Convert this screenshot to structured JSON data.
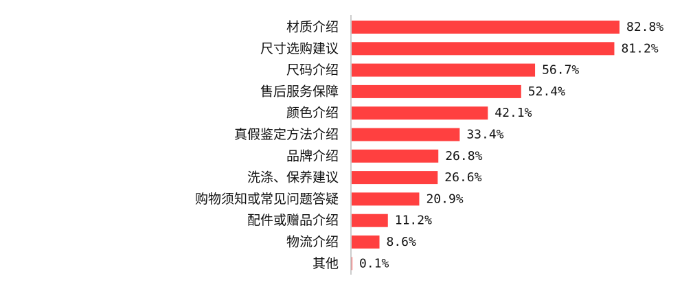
{
  "chart_data": {
    "type": "bar",
    "orientation": "horizontal",
    "categories": [
      "材质介绍",
      "尺寸选购建议",
      "尺码介绍",
      "售后服务保障",
      "颜色介绍",
      "真假鉴定方法介绍",
      "品牌介绍",
      "洗涤、保养建议",
      "购物须知或常见问题答疑",
      "配件或赠品介绍",
      "物流介绍",
      "其他"
    ],
    "values": [
      82.8,
      81.2,
      56.7,
      52.4,
      42.1,
      33.4,
      26.8,
      26.6,
      20.9,
      11.2,
      8.6,
      0.1
    ],
    "value_labels": [
      "82.8%",
      "81.2%",
      "56.7%",
      "52.4%",
      "42.1%",
      "33.4%",
      "26.8%",
      "26.6%",
      "20.9%",
      "11.2%",
      "8.6%",
      "0.1%"
    ],
    "title": "",
    "xlabel": "",
    "ylabel": "",
    "xlim": [
      0,
      100
    ],
    "grid": false,
    "legend": "none",
    "colors": {
      "bar": "#ff4040",
      "axis": "#999999",
      "text": "#111111"
    }
  }
}
